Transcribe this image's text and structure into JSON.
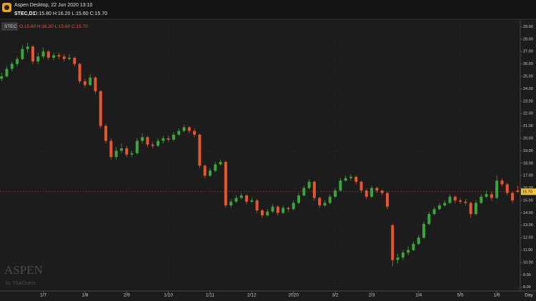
{
  "chart_data": {
    "type": "candlestick",
    "app_title": "Aspen Desktop, 22 Jun 2020 13:10",
    "symbol_label": "STEC,D1",
    "quote_label": "O:15.80 H:16.20 L:15.60 C:15.70",
    "xlabel": "Day",
    "watermark": "ASPEN",
    "watermark_sub": "by ThaiQuest",
    "up_color": "#3aa63a",
    "down_color": "#e8542b",
    "grid": true,
    "xlim": [
      -0.3,
      99.5
    ],
    "ylim": [
      7.7,
      29.6
    ],
    "yticks": [
      {
        "value": 8,
        "label": "8.00"
      },
      {
        "value": 9,
        "label": "9.00"
      },
      {
        "value": 10,
        "label": "10.00"
      },
      {
        "value": 11,
        "label": "11.00"
      },
      {
        "value": 12,
        "label": "12.00"
      },
      {
        "value": 13,
        "label": "13.00"
      },
      {
        "value": 14,
        "label": "14.00"
      },
      {
        "value": 15,
        "label": "15.00"
      },
      {
        "value": 16,
        "label": "16.00"
      },
      {
        "value": 17,
        "label": "17.00"
      },
      {
        "value": 18,
        "label": "18.00"
      },
      {
        "value": 19,
        "label": "19.00"
      },
      {
        "value": 20,
        "label": "20.00"
      },
      {
        "value": 21,
        "label": "21.00"
      },
      {
        "value": 22,
        "label": "22.00"
      },
      {
        "value": 23,
        "label": "23.00"
      },
      {
        "value": 24,
        "label": "24.00"
      },
      {
        "value": 25,
        "label": "25.00"
      },
      {
        "value": 26,
        "label": "26.00"
      },
      {
        "value": 27,
        "label": "27.00"
      },
      {
        "value": 28,
        "label": "28.00"
      },
      {
        "value": 29,
        "label": "29.00"
      }
    ],
    "xticks": [
      {
        "value": 8,
        "label": "1/7"
      },
      {
        "value": 16,
        "label": "1/8"
      },
      {
        "value": 24,
        "label": "2/9"
      },
      {
        "value": 32,
        "label": "1/10"
      },
      {
        "value": 40,
        "label": "1/11"
      },
      {
        "value": 48,
        "label": "2/12"
      },
      {
        "value": 56,
        "label": "2020"
      },
      {
        "value": 64,
        "label": "3/2"
      },
      {
        "value": 71,
        "label": "2/3"
      },
      {
        "value": 80,
        "label": "1/4"
      },
      {
        "value": 88,
        "label": "5/5"
      },
      {
        "value": 95,
        "label": "1/6"
      }
    ],
    "last_price": {
      "value": 15.7,
      "label": "15.70"
    },
    "series": [
      {
        "name": "STEC",
        "ohlc": [
          [
            24.8,
            25.3,
            24.6,
            25.0
          ],
          [
            25.0,
            25.8,
            24.9,
            25.6
          ],
          [
            25.6,
            26.2,
            25.4,
            26.0
          ],
          [
            26.0,
            26.6,
            25.8,
            26.4
          ],
          [
            26.4,
            27.5,
            26.3,
            27.2
          ],
          [
            27.2,
            27.7,
            26.9,
            27.4
          ],
          [
            27.4,
            27.5,
            26.0,
            26.2
          ],
          [
            26.2,
            26.9,
            26.0,
            26.6
          ],
          [
            26.6,
            27.3,
            26.4,
            27.0
          ],
          [
            27.0,
            27.1,
            26.3,
            26.5
          ],
          [
            26.5,
            26.9,
            26.3,
            26.7
          ],
          [
            26.7,
            26.9,
            26.4,
            26.6
          ],
          [
            26.6,
            26.8,
            26.2,
            26.4
          ],
          [
            26.4,
            26.8,
            26.3,
            26.5
          ],
          [
            26.5,
            26.6,
            25.8,
            26.0
          ],
          [
            26.0,
            26.1,
            24.4,
            24.6
          ],
          [
            24.6,
            24.8,
            24.1,
            24.3
          ],
          [
            24.3,
            25.2,
            24.2,
            24.9
          ],
          [
            24.9,
            25.0,
            23.6,
            23.8
          ],
          [
            23.8,
            23.9,
            20.8,
            21.0
          ],
          [
            21.0,
            21.2,
            19.6,
            19.8
          ],
          [
            19.8,
            20.0,
            18.3,
            18.5
          ],
          [
            18.5,
            19.3,
            18.3,
            19.0
          ],
          [
            19.0,
            19.6,
            18.8,
            19.2
          ],
          [
            19.2,
            19.4,
            18.5,
            18.7
          ],
          [
            18.7,
            19.0,
            18.5,
            18.8
          ],
          [
            18.8,
            20.0,
            18.7,
            19.8
          ],
          [
            19.8,
            20.4,
            19.6,
            20.1
          ],
          [
            20.1,
            20.2,
            19.3,
            19.5
          ],
          [
            19.5,
            19.7,
            19.2,
            19.4
          ],
          [
            19.4,
            20.0,
            19.3,
            19.8
          ],
          [
            19.8,
            20.2,
            19.6,
            20.0
          ],
          [
            20.0,
            20.2,
            19.7,
            19.9
          ],
          [
            19.9,
            20.5,
            19.8,
            20.3
          ],
          [
            20.3,
            20.8,
            20.2,
            20.6
          ],
          [
            20.6,
            21.1,
            20.5,
            20.9
          ],
          [
            20.9,
            21.0,
            20.4,
            20.6
          ],
          [
            20.6,
            20.8,
            20.1,
            20.3
          ],
          [
            20.3,
            20.4,
            17.6,
            17.8
          ],
          [
            17.8,
            17.9,
            16.8,
            17.0
          ],
          [
            17.0,
            17.6,
            16.9,
            17.4
          ],
          [
            17.4,
            18.1,
            17.3,
            17.9
          ],
          [
            17.9,
            18.3,
            17.8,
            18.1
          ],
          [
            18.1,
            18.2,
            14.4,
            14.6
          ],
          [
            14.6,
            15.1,
            14.4,
            14.9
          ],
          [
            14.9,
            15.4,
            14.8,
            15.2
          ],
          [
            15.2,
            15.6,
            15.1,
            15.4
          ],
          [
            15.4,
            15.5,
            14.7,
            14.9
          ],
          [
            14.9,
            15.2,
            14.8,
            15.0
          ],
          [
            15.0,
            15.1,
            14.0,
            14.2
          ],
          [
            14.2,
            14.3,
            13.6,
            13.8
          ],
          [
            13.8,
            14.3,
            13.7,
            14.1
          ],
          [
            14.1,
            14.7,
            14.0,
            14.5
          ],
          [
            14.5,
            14.6,
            13.8,
            14.0
          ],
          [
            14.0,
            14.6,
            13.9,
            14.4
          ],
          [
            14.4,
            14.5,
            14.1,
            14.3
          ],
          [
            14.3,
            15.0,
            14.2,
            14.8
          ],
          [
            14.8,
            15.6,
            14.7,
            15.4
          ],
          [
            15.4,
            16.2,
            15.3,
            16.0
          ],
          [
            16.0,
            16.7,
            15.9,
            16.5
          ],
          [
            16.5,
            16.6,
            15.0,
            15.2
          ],
          [
            15.2,
            15.3,
            14.4,
            14.6
          ],
          [
            14.6,
            15.0,
            14.5,
            14.8
          ],
          [
            14.8,
            15.5,
            14.7,
            15.3
          ],
          [
            15.3,
            16.0,
            15.2,
            15.8
          ],
          [
            15.8,
            16.8,
            15.7,
            16.6
          ],
          [
            16.6,
            17.0,
            16.5,
            16.8
          ],
          [
            16.8,
            17.1,
            16.6,
            16.9
          ],
          [
            16.9,
            17.0,
            16.3,
            16.5
          ],
          [
            16.5,
            16.6,
            15.6,
            15.8
          ],
          [
            15.8,
            15.9,
            15.1,
            15.3
          ],
          [
            15.3,
            16.2,
            15.2,
            16.0
          ],
          [
            16.0,
            16.1,
            15.6,
            15.8
          ],
          [
            15.8,
            15.9,
            15.4,
            15.6
          ],
          [
            15.6,
            15.7,
            14.3,
            14.5
          ],
          [
            13.0,
            13.1,
            9.7,
            10.2
          ],
          [
            10.2,
            10.7,
            9.9,
            10.4
          ],
          [
            10.4,
            11.0,
            10.2,
            10.8
          ],
          [
            10.8,
            11.3,
            10.6,
            11.0
          ],
          [
            11.0,
            11.7,
            10.9,
            11.5
          ],
          [
            11.5,
            12.2,
            11.4,
            12.0
          ],
          [
            12.0,
            13.3,
            11.9,
            13.1
          ],
          [
            13.1,
            14.1,
            13.0,
            13.9
          ],
          [
            13.9,
            14.5,
            13.8,
            14.3
          ],
          [
            14.3,
            14.8,
            14.2,
            14.6
          ],
          [
            14.6,
            15.0,
            14.5,
            14.8
          ],
          [
            14.8,
            15.5,
            14.7,
            15.3
          ],
          [
            15.3,
            15.4,
            14.8,
            15.0
          ],
          [
            15.0,
            15.2,
            14.7,
            14.9
          ],
          [
            14.9,
            15.1,
            14.6,
            14.8
          ],
          [
            14.8,
            14.9,
            13.6,
            13.9
          ],
          [
            13.9,
            15.0,
            13.8,
            14.8
          ],
          [
            14.8,
            15.5,
            14.7,
            15.3
          ],
          [
            15.3,
            15.8,
            15.2,
            15.5
          ],
          [
            15.5,
            15.7,
            15.0,
            15.2
          ],
          [
            15.2,
            17.0,
            15.1,
            16.6
          ],
          [
            16.6,
            16.8,
            16.1,
            16.3
          ],
          [
            16.3,
            16.4,
            15.4,
            15.6
          ],
          [
            15.6,
            15.7,
            14.8,
            15.0
          ],
          [
            15.8,
            16.2,
            15.6,
            15.7
          ]
        ]
      }
    ]
  }
}
